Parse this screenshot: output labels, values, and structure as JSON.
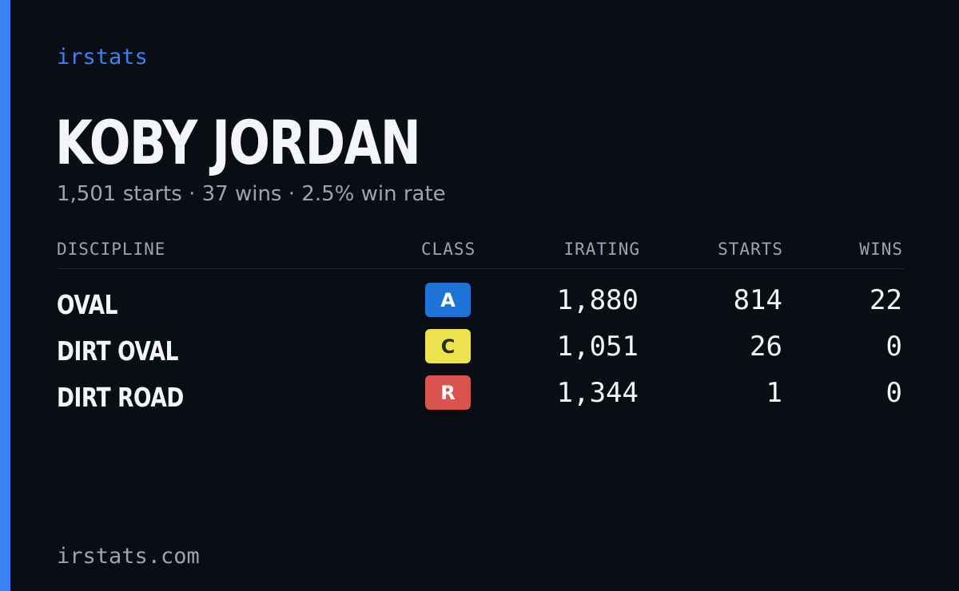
{
  "brand": "irstats",
  "driver": {
    "name": "KOBY JORDAN",
    "starts_text": "1,501 starts",
    "wins_text": "37 wins",
    "winrate_text": "2.5% win rate",
    "separator": "·"
  },
  "table": {
    "headers": {
      "discipline": "DISCIPLINE",
      "class": "CLASS",
      "irating": "IRATING",
      "starts": "STARTS",
      "wins": "WINS"
    },
    "rows": [
      {
        "discipline": "OVAL",
        "class": "A",
        "class_color": "#1b74d6",
        "class_text_color": "#ffffff",
        "irating": "1,880",
        "starts": "814",
        "wins": "22"
      },
      {
        "discipline": "DIRT OVAL",
        "class": "C",
        "class_color": "#ece24e",
        "class_text_color": "#2a2a1a",
        "irating": "1,051",
        "starts": "26",
        "wins": "0"
      },
      {
        "discipline": "DIRT ROAD",
        "class": "R",
        "class_color": "#d9534f",
        "class_text_color": "#ffffff",
        "irating": "1,344",
        "starts": "1",
        "wins": "0"
      }
    ]
  },
  "footer": "irstats.com",
  "colors": {
    "background": "#0b0d14",
    "accent": "#3b82f6",
    "muted_text": "#9aa4b4",
    "primary_text": "#f3f5f9"
  }
}
